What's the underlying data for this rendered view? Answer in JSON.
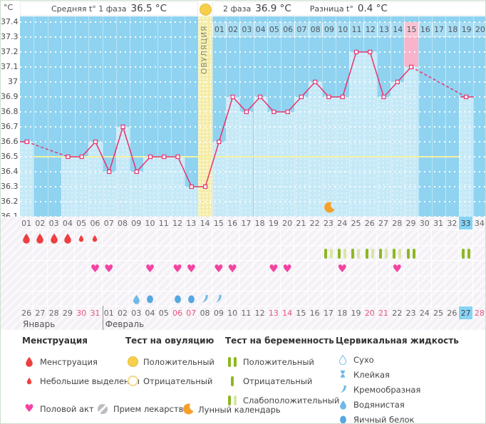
{
  "header": {
    "unit": "°C",
    "phase1_label": "Средняя t° 1 фаза",
    "phase1_value": "36.5 °C",
    "phase2_label": "2 фаза",
    "phase2_value": "36.9 °C",
    "diff_label": "Разница t°",
    "diff_value": "0.4 °C"
  },
  "chart_data": {
    "type": "line",
    "x": [
      1,
      2,
      3,
      4,
      5,
      6,
      7,
      8,
      9,
      10,
      11,
      12,
      13,
      14,
      15,
      16,
      17,
      18,
      19,
      20,
      21,
      22,
      23,
      24,
      25,
      26,
      27,
      28,
      29,
      30,
      31,
      32,
      33,
      34
    ],
    "temperatures": [
      36.6,
      null,
      null,
      36.5,
      36.5,
      36.6,
      36.4,
      36.7,
      36.4,
      36.5,
      36.5,
      36.5,
      36.3,
      36.3,
      36.6,
      36.9,
      36.8,
      36.9,
      36.8,
      36.8,
      36.9,
      37.0,
      36.9,
      36.9,
      37.2,
      37.2,
      36.9,
      37.0,
      37.1,
      null,
      null,
      null,
      36.9,
      null
    ],
    "ylim": [
      36.1,
      37.4
    ],
    "y_ticks": [
      "37.4",
      "37.3",
      "37.2",
      "37.1",
      "37",
      "36.9",
      "36.8",
      "36.7",
      "36.6",
      "36.5",
      "36.4",
      "36.3",
      "36.2",
      "36.1"
    ],
    "coverline": 36.5,
    "ovulation_day": 14,
    "ovulation_label": "ОВУЛЯЦИЯ",
    "highlight_day": 29,
    "today_day": 33,
    "moon_day": 23,
    "phase2_axis": {
      "start_day": 15,
      "labels": [
        "01",
        "02",
        "03",
        "04",
        "05",
        "06",
        "07",
        "08",
        "09",
        "10",
        "11",
        "12",
        "13",
        "14",
        "15",
        "16",
        "17",
        "18",
        "19",
        "20"
      ],
      "highlighted_label": "15"
    }
  },
  "bottom_axis": {
    "labels": [
      "01",
      "02",
      "03",
      "04",
      "05",
      "06",
      "07",
      "08",
      "09",
      "10",
      "11",
      "12",
      "13",
      "14",
      "15",
      "16",
      "17",
      "18",
      "19",
      "20",
      "21",
      "22",
      "23",
      "24",
      "25",
      "26",
      "27",
      "28",
      "29",
      "30",
      "31",
      "32",
      "33",
      "34"
    ],
    "highlighted_label": "33"
  },
  "rows": {
    "menstruation": {
      "heavy_days": [
        1,
        2,
        3,
        4
      ],
      "light_days": [
        5,
        6
      ]
    },
    "pregnancy_tests": [
      {
        "day": 23,
        "result": "weak"
      },
      {
        "day": 24,
        "result": "weak"
      },
      {
        "day": 25,
        "result": "weak"
      },
      {
        "day": 26,
        "result": "weak"
      },
      {
        "day": 27,
        "result": "weak"
      },
      {
        "day": 28,
        "result": "weak"
      },
      {
        "day": 29,
        "result": "positive"
      },
      {
        "day": 33,
        "result": "positive"
      }
    ],
    "intercourse_days": [
      6,
      7,
      10,
      12,
      13,
      15,
      16,
      19,
      20,
      24,
      28
    ],
    "cervical_fluid": [
      {
        "day": 9,
        "type": "watery"
      },
      {
        "day": 10,
        "type": "eggwhite"
      },
      {
        "day": 12,
        "type": "eggwhite"
      },
      {
        "day": 13,
        "type": "eggwhite"
      },
      {
        "day": 14,
        "type": "creamy"
      },
      {
        "day": 15,
        "type": "creamy"
      }
    ]
  },
  "calendar": {
    "dates": [
      "26",
      "27",
      "28",
      "29",
      "30",
      "31",
      "01",
      "02",
      "03",
      "04",
      "05",
      "06",
      "07",
      "08",
      "09",
      "10",
      "11",
      "12",
      "13",
      "14",
      "15",
      "16",
      "17",
      "18",
      "19",
      "20",
      "21",
      "22",
      "23",
      "24",
      "25",
      "26",
      "27",
      "28"
    ],
    "weekend_indices": [
      4,
      5,
      11,
      12,
      18,
      19,
      25,
      26,
      32,
      33
    ],
    "today_index": 32,
    "months": [
      {
        "label": "Январь",
        "start_day": 1,
        "span": 6
      },
      {
        "label": "Февраль",
        "start_day": 7,
        "span": 28
      }
    ]
  },
  "legend": {
    "groups": [
      {
        "title": "Менструация",
        "items": [
          {
            "icon": "drop-large",
            "label": "Менструация"
          },
          {
            "icon": "drop-small",
            "label": "Небольшие выделения"
          }
        ]
      },
      {
        "title": "Тест на овуляцию",
        "items": [
          {
            "icon": "circle-filled",
            "label": "Положительный"
          },
          {
            "icon": "circle-outline",
            "label": "Отрицательный"
          }
        ]
      },
      {
        "title": "Тест на беременность",
        "items": [
          {
            "icon": "bars-positive",
            "label": "Положительный"
          },
          {
            "icon": "bar-negative",
            "label": "Отрицательный"
          },
          {
            "icon": "bars-weak",
            "label": "Слабоположительный"
          }
        ]
      },
      {
        "title": "Цервикальная жидкость",
        "items": [
          {
            "icon": "fluid-dry",
            "label": "Сухо"
          },
          {
            "icon": "fluid-sticky",
            "label": "Клейкая"
          },
          {
            "icon": "fluid-creamy",
            "label": "Кремообразная"
          },
          {
            "icon": "fluid-watery",
            "label": "Водянистая"
          },
          {
            "icon": "fluid-eggwhite",
            "label": "Яичный белок"
          }
        ]
      }
    ],
    "footer_items": [
      {
        "icon": "heart",
        "label": "Половой акт"
      },
      {
        "icon": "pill",
        "label": "Прием лекарств"
      },
      {
        "icon": "moon",
        "label": "Лунный календарь"
      }
    ]
  },
  "colors": {
    "line": "#e8326e",
    "chart_bg": "#8fd3f0",
    "bar": "#c6e9f7",
    "ovulation_column": "#f4eca6",
    "highlight_column": "#f8b4ca",
    "highlight_cell": "#f9c3d4",
    "coverline": "#f6f1a3",
    "today_highlight": "#87d3f3",
    "menstruation": "#ee3f3f",
    "heart": "#f343a1",
    "test_positive": "#8cb821",
    "test_weak": "#d9e6a8",
    "ovu_test_yellow": "#f8cf4a",
    "fluid_blue": "#6fb9e7",
    "fluid_deep_blue": "#57a8e0",
    "moon_orange": "#f5a02d",
    "pill_gray": "#bcbdc1"
  }
}
